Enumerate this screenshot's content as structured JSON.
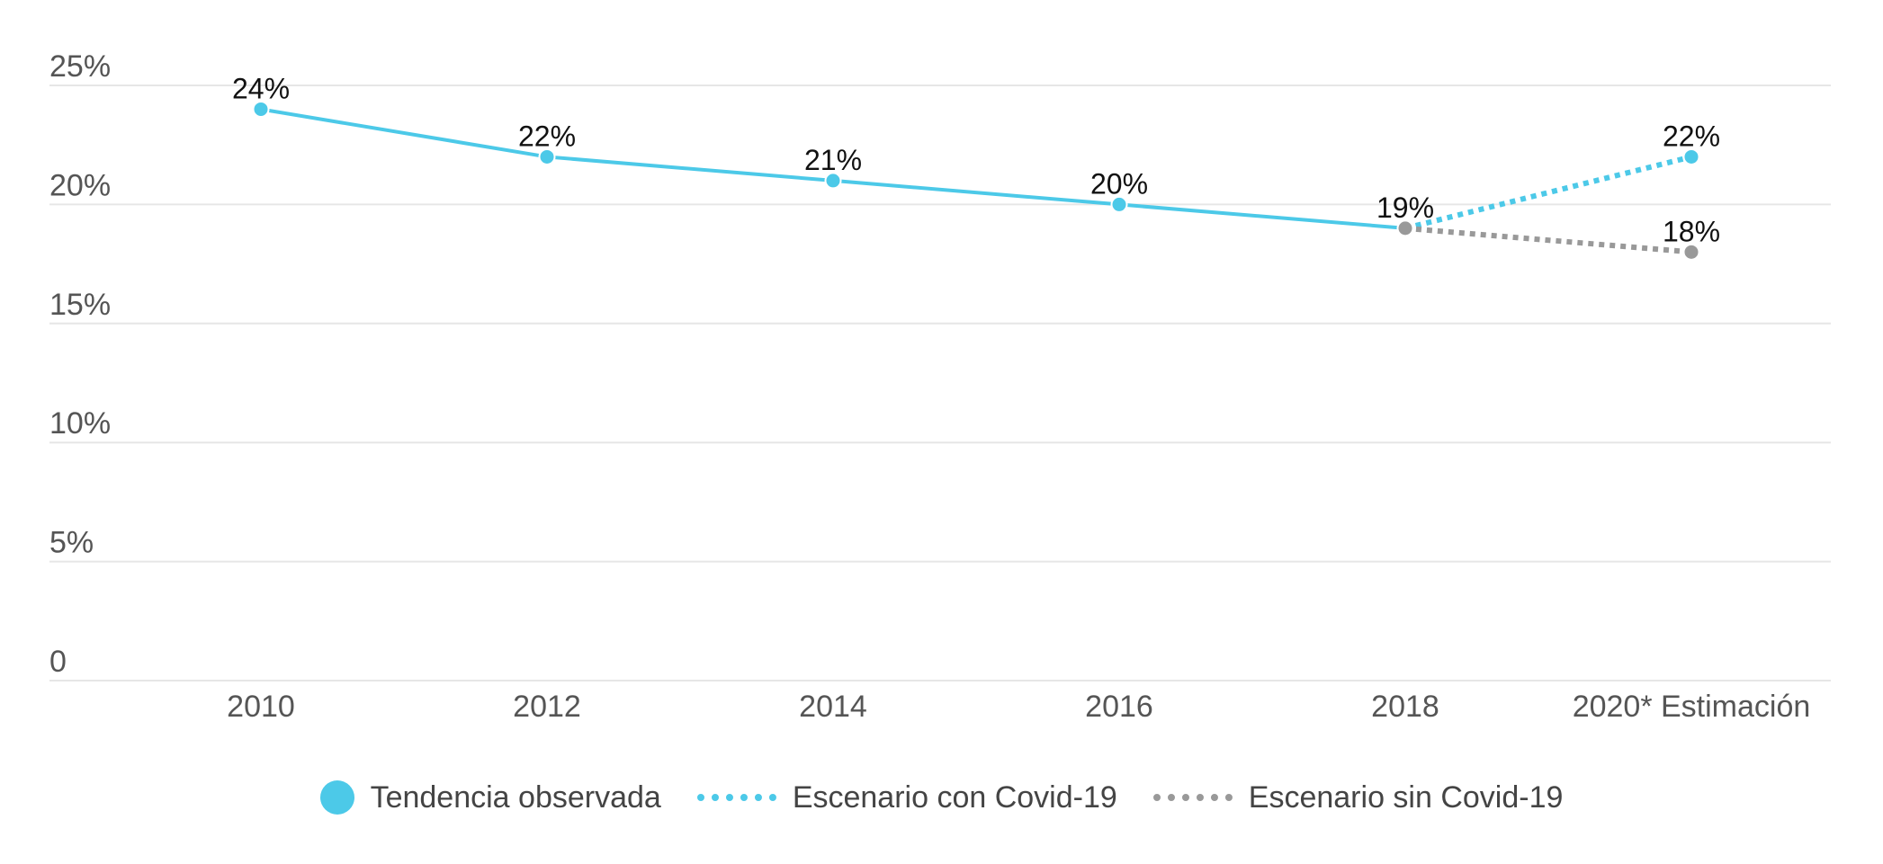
{
  "chart_data": {
    "type": "line",
    "title": "",
    "xlabel": "",
    "ylabel": "",
    "categories": [
      "2010",
      "2012",
      "2014",
      "2016",
      "2018",
      "2020* Estimación"
    ],
    "yticks": [
      0,
      5,
      10,
      15,
      20,
      25
    ],
    "ytick_labels": [
      "0",
      "5%",
      "10%",
      "15%",
      "20%",
      "25%"
    ],
    "ylim": [
      0,
      25
    ],
    "grid": true,
    "legend_position": "bottom",
    "series": [
      {
        "name": "Tendencia observada",
        "style": "solid",
        "color": "#4cc9e8",
        "values": [
          24,
          22,
          21,
          20,
          19,
          null
        ],
        "labels": [
          "24%",
          "22%",
          "21%",
          "20%",
          "19%",
          ""
        ]
      },
      {
        "name": "Escenario con Covid-19",
        "style": "dotted",
        "color": "#4cc9e8",
        "values": [
          null,
          null,
          null,
          null,
          19,
          22
        ],
        "labels": [
          "",
          "",
          "",
          "",
          "",
          "22%"
        ]
      },
      {
        "name": "Escenario sin Covid-19",
        "style": "dotted",
        "color": "#999999",
        "values": [
          null,
          null,
          null,
          null,
          19,
          18
        ],
        "labels": [
          "",
          "",
          "",
          "",
          "",
          "18%"
        ]
      }
    ]
  }
}
